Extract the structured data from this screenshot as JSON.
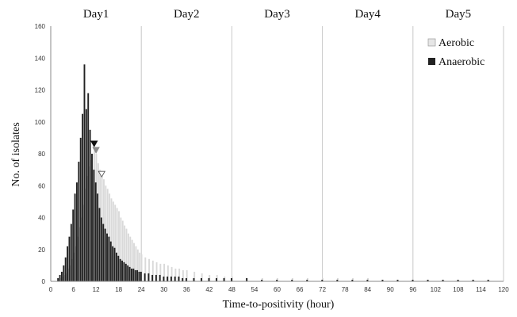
{
  "chart_data": {
    "type": "bar",
    "xlabel": "Time-to-positivity (hour)",
    "ylabel": "No. of isolates",
    "xlim": [
      0,
      120
    ],
    "ylim": [
      0,
      160
    ],
    "x_ticks": [
      0,
      6,
      12,
      18,
      24,
      30,
      36,
      42,
      48,
      54,
      60,
      66,
      72,
      78,
      84,
      90,
      96,
      102,
      108,
      114,
      120
    ],
    "y_ticks": [
      0,
      20,
      40,
      60,
      80,
      100,
      120,
      140,
      160
    ],
    "day_labels": [
      "Day1",
      "Day2",
      "Day3",
      "Day4",
      "Day5"
    ],
    "day_dividers": [
      24,
      48,
      72,
      96,
      120
    ],
    "legend": {
      "position": "top-right"
    },
    "bin_hours": 0.5,
    "series": [
      {
        "name": "Aerobic",
        "color": "#d9d9d9",
        "x": [
          2,
          2.5,
          3,
          3.5,
          4,
          4.5,
          5,
          5.5,
          6,
          6.5,
          7,
          7.5,
          8,
          8.5,
          9,
          9.5,
          10,
          10.5,
          11,
          11.5,
          12,
          12.5,
          13,
          13.5,
          14,
          14.5,
          15,
          15.5,
          16,
          16.5,
          17,
          17.5,
          18,
          18.5,
          19,
          19.5,
          20,
          20.5,
          21,
          21.5,
          22,
          22.5,
          23,
          23.5,
          24,
          25,
          26,
          27,
          28,
          29,
          30,
          31,
          32,
          33,
          34,
          35,
          36,
          38,
          40,
          42,
          44,
          46,
          48,
          52,
          56,
          60,
          64,
          68,
          72,
          76,
          80,
          84,
          88,
          92,
          96,
          100,
          104,
          108,
          112,
          116
        ],
        "values": [
          1,
          2,
          3,
          4,
          5,
          8,
          10,
          14,
          18,
          22,
          28,
          34,
          40,
          48,
          58,
          66,
          72,
          76,
          80,
          82,
          80,
          74,
          70,
          68,
          64,
          60,
          58,
          55,
          52,
          50,
          48,
          46,
          44,
          40,
          38,
          35,
          33,
          30,
          28,
          26,
          24,
          22,
          20,
          18,
          17,
          15,
          14,
          13,
          12,
          11,
          11,
          10,
          9,
          8,
          8,
          7,
          7,
          6,
          5,
          4,
          4,
          3,
          3,
          2,
          2,
          2,
          2,
          2,
          2,
          2,
          2,
          2,
          1,
          1,
          1,
          1,
          1,
          1,
          1,
          1
        ]
      },
      {
        "name": "Anaerobic",
        "color": "#222222",
        "x": [
          2,
          2.5,
          3,
          3.5,
          4,
          4.5,
          5,
          5.5,
          6,
          6.5,
          7,
          7.5,
          8,
          8.5,
          9,
          9.5,
          10,
          10.5,
          11,
          11.5,
          12,
          12.5,
          13,
          13.5,
          14,
          14.5,
          15,
          15.5,
          16,
          16.5,
          17,
          17.5,
          18,
          18.5,
          19,
          19.5,
          20,
          20.5,
          21,
          21.5,
          22,
          22.5,
          23,
          23.5,
          24,
          25,
          26,
          27,
          28,
          29,
          30,
          31,
          32,
          33,
          34,
          35,
          36,
          38,
          40,
          42,
          44,
          46,
          48,
          52,
          56,
          60,
          64,
          68,
          72,
          76,
          80,
          84,
          88,
          92,
          96,
          100,
          104,
          108,
          112,
          116
        ],
        "values": [
          2,
          4,
          6,
          10,
          15,
          22,
          28,
          36,
          45,
          55,
          62,
          75,
          90,
          105,
          136,
          108,
          118,
          95,
          80,
          70,
          62,
          55,
          46,
          40,
          36,
          33,
          30,
          28,
          25,
          22,
          21,
          18,
          16,
          14,
          13,
          12,
          11,
          10,
          9,
          8,
          8,
          7,
          7,
          6,
          6,
          5,
          5,
          4,
          4,
          4,
          3,
          3,
          3,
          3,
          3,
          2,
          2,
          2,
          2,
          2,
          2,
          2,
          2,
          2,
          1,
          1,
          1,
          1,
          1,
          1,
          1,
          1,
          1,
          1,
          1,
          1,
          1,
          1,
          1,
          1
        ]
      }
    ],
    "markers": [
      {
        "series": "Anaerobic",
        "x": 11.5,
        "y": 86,
        "style": "filled",
        "color": "#111111"
      },
      {
        "series": "Aerobic",
        "x": 12,
        "y": 82,
        "style": "filled",
        "color": "#8c8c8c"
      },
      {
        "series": "Aerobic",
        "x": 13.5,
        "y": 67,
        "style": "outline",
        "color": "#555555"
      }
    ]
  }
}
